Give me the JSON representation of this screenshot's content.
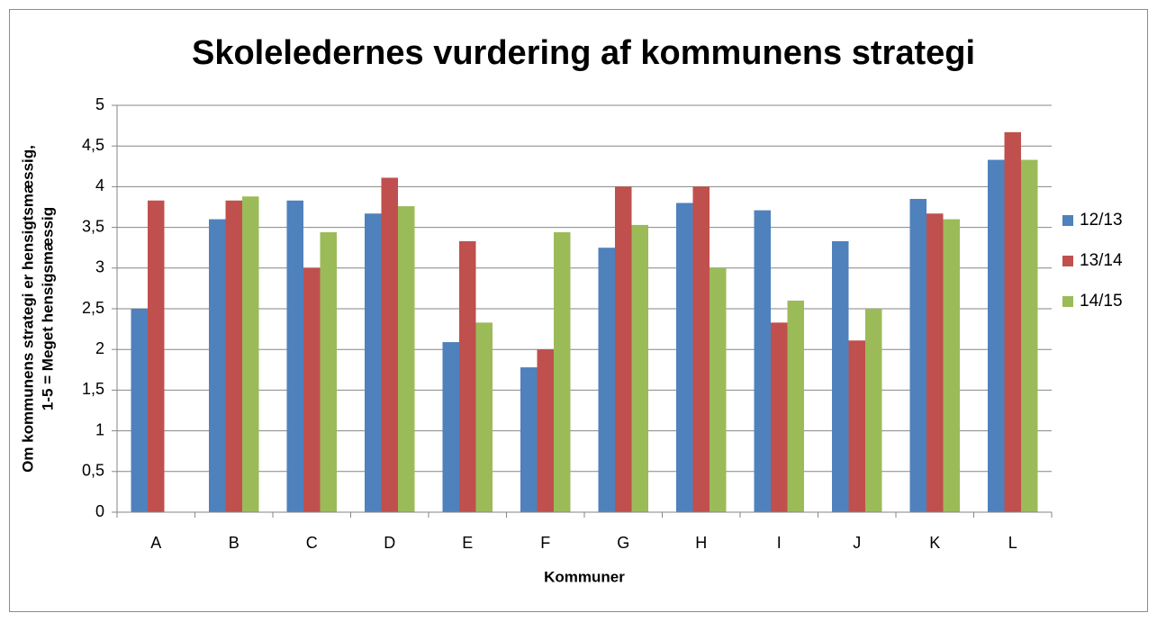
{
  "chart_data": {
    "type": "bar",
    "title": "Skoleledernes vurdering af kommunens strategi",
    "x_label": "Kommuner",
    "y_label": [
      "Om kommunens strategi er hensigtsmæssig,",
      "1-5 = Meget hensigsmæssig"
    ],
    "categories": [
      "A",
      "B",
      "C",
      "D",
      "E",
      "F",
      "G",
      "H",
      "I",
      "J",
      "K",
      "L"
    ],
    "series": [
      {
        "name": "12/13",
        "color": "#4f81bd",
        "values": [
          2.5,
          3.6,
          3.83,
          3.67,
          2.09,
          1.78,
          3.25,
          3.8,
          3.71,
          3.33,
          3.85,
          4.33
        ]
      },
      {
        "name": "13/14",
        "color": "#c0504d",
        "values": [
          3.83,
          3.83,
          3.0,
          4.11,
          3.33,
          2.0,
          4.0,
          4.0,
          2.33,
          2.11,
          3.67,
          4.67
        ]
      },
      {
        "name": "14/15",
        "color": "#9bbb59",
        "values": [
          null,
          3.88,
          3.44,
          3.76,
          2.33,
          3.44,
          3.53,
          3.0,
          2.6,
          2.5,
          3.6,
          4.33
        ]
      }
    ],
    "ylim": [
      0,
      5
    ],
    "yticks": [
      0,
      {
        "value": 0.5,
        "label": "0,5"
      },
      1,
      {
        "value": 1.5,
        "label": "1,5"
      },
      2,
      {
        "value": 2.5,
        "label": "2,5"
      },
      3,
      {
        "value": 3.5,
        "label": "3,5"
      },
      4,
      {
        "value": 4.5,
        "label": "4,5"
      },
      5
    ],
    "grid": true,
    "legend": "right"
  }
}
